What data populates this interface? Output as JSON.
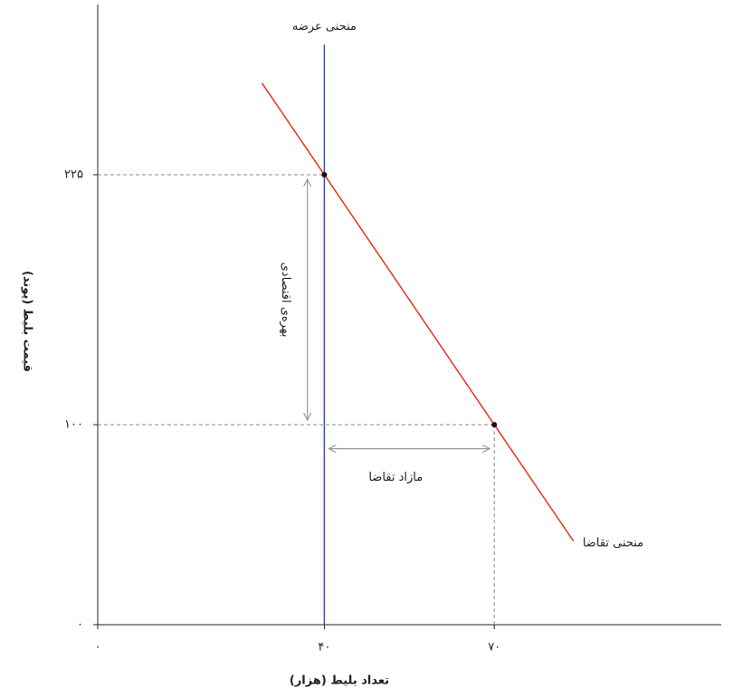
{
  "chart_data": {
    "type": "line",
    "x_label": "تعداد بلیط (هزار)",
    "y_label": "قیمت بلیط (پوند)",
    "xlim": [
      0,
      110
    ],
    "ylim": [
      0,
      310
    ],
    "xticks": [
      {
        "value": 0,
        "label": "٠"
      },
      {
        "value": 40,
        "label": "۴٠"
      },
      {
        "value": 70,
        "label": "۷٠"
      }
    ],
    "yticks": [
      {
        "value": 0,
        "label": "٠"
      },
      {
        "value": 100,
        "label": "۱۰۰"
      },
      {
        "value": 225,
        "label": "۲۲۵"
      }
    ],
    "series": [
      {
        "name": "منحنی عرضه",
        "color": "#3f51b5",
        "x": [
          40,
          40
        ],
        "values": [
          0,
          290
        ]
      },
      {
        "name": "منحنی تقاضا",
        "color": "#e8341c",
        "x": [
          29,
          40,
          70,
          84
        ],
        "values": [
          270.8,
          225,
          100,
          41.7
        ]
      }
    ],
    "points": {
      "x": [
        40,
        70
      ],
      "values": [
        225,
        100
      ]
    },
    "annotations": [
      {
        "text": "بهره‌ی اقتصادی",
        "x": [
          37,
          37
        ],
        "y": [
          225,
          100
        ]
      },
      {
        "text": "مازاد تقاضا",
        "x": [
          40,
          70
        ],
        "y": [
          88,
          88
        ]
      }
    ]
  }
}
